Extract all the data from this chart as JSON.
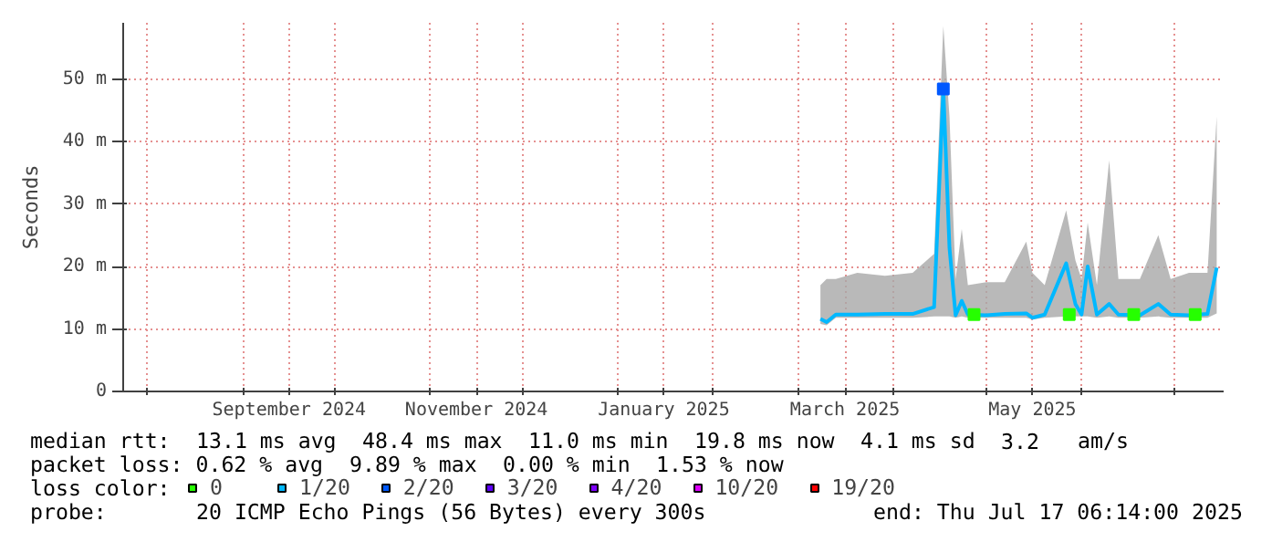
{
  "chart_data": {
    "type": "line",
    "ylabel": "Seconds",
    "xlim": [
      "2024-07-24",
      "2025-07-17T06:14"
    ],
    "xticks": [
      {
        "value": "2024-08-01",
        "label": null
      },
      {
        "value": "2024-09-01",
        "label": null
      },
      {
        "value": "2024-09-16",
        "label": "September 2024"
      },
      {
        "value": "2024-10-01",
        "label": null
      },
      {
        "value": "2024-11-01",
        "label": null
      },
      {
        "value": "2024-11-16",
        "label": "November 2024"
      },
      {
        "value": "2024-12-01",
        "label": null
      },
      {
        "value": "2025-01-01",
        "label": null
      },
      {
        "value": "2025-01-16",
        "label": "January 2025"
      },
      {
        "value": "2025-02-01",
        "label": null
      },
      {
        "value": "2025-03-01",
        "label": null
      },
      {
        "value": "2025-03-16",
        "label": "March 2025"
      },
      {
        "value": "2025-04-01",
        "label": null
      },
      {
        "value": "2025-05-01",
        "label": null
      },
      {
        "value": "2025-05-16",
        "label": "May 2025"
      },
      {
        "value": "2025-06-01",
        "label": null
      },
      {
        "value": "2025-07-01",
        "label": null
      }
    ],
    "ylim": [
      0,
      59
    ],
    "yticks": [
      0,
      {
        "value": 10,
        "label": "10 m"
      },
      {
        "value": 20,
        "label": "20 m"
      },
      {
        "value": 30,
        "label": "30 m"
      },
      {
        "value": 40,
        "label": "40 m"
      },
      {
        "value": 50,
        "label": "50 m"
      }
    ],
    "grid": true,
    "legend": "bottom",
    "legend_title": "loss color:",
    "x": [
      "2025-03-08",
      "2025-03-10",
      "2025-03-13",
      "2025-03-20",
      "2025-03-29",
      "2025-04-07",
      "2025-04-14",
      "2025-04-17",
      "2025-04-19",
      "2025-04-21",
      "2025-04-23",
      "2025-04-25",
      "2025-05-01",
      "2025-05-07",
      "2025-05-14",
      "2025-05-16",
      "2025-05-20",
      "2025-05-27",
      "2025-05-30",
      "2025-06-01",
      "2025-06-03",
      "2025-06-06",
      "2025-06-10",
      "2025-06-13",
      "2025-06-20",
      "2025-06-26",
      "2025-06-30",
      "2025-07-06",
      "2025-07-12",
      "2025-07-15"
    ],
    "series": [
      {
        "name": "0",
        "color": "#26ff00",
        "type": "scatter",
        "marker": "square",
        "x": [
          "2025-04-27",
          "2025-05-28",
          "2025-06-18",
          "2025-07-08"
        ],
        "values": [
          12.3,
          12.3,
          12.3,
          12.3
        ]
      },
      {
        "name": "1/20",
        "color": "#00b8ff",
        "values": [
          11.6,
          11.1,
          12.3,
          12.3,
          12.4,
          12.4,
          13.5,
          48.4,
          23,
          12.2,
          14.5,
          12.3,
          12.2,
          12.4,
          12.5,
          11.8,
          12.3,
          20.5,
          14,
          12.3,
          20,
          12.3,
          14,
          12.3,
          12.2,
          14,
          12.3,
          12.2,
          12.4,
          19.8
        ],
        "lower": [
          10.8,
          10.6,
          11.8,
          11.8,
          11.8,
          11.8,
          12,
          12,
          12,
          11.8,
          12,
          11.8,
          11.8,
          11.8,
          11.8,
          11.5,
          11.8,
          12,
          12,
          12,
          12,
          11.8,
          12,
          11.8,
          11.8,
          12,
          11.8,
          11.8,
          11.8,
          12.5
        ],
        "upper": [
          17,
          18,
          18,
          19,
          18.5,
          19,
          22,
          58.5,
          44,
          18,
          26,
          17,
          17.5,
          17.5,
          24,
          19,
          17,
          29,
          21,
          18,
          27,
          17,
          37,
          18,
          18,
          25,
          18,
          19,
          19,
          44
        ]
      },
      {
        "name": "2/20",
        "color": "#0059ff",
        "type": "scatter",
        "marker": "square",
        "x": [
          "2025-04-17"
        ],
        "values": [
          48.4
        ]
      },
      {
        "name": "3/20",
        "color": "#5e00ff",
        "values": [
          null,
          null,
          null,
          null,
          null,
          null,
          null,
          null,
          null,
          null,
          null,
          null,
          null,
          null,
          null,
          null,
          null,
          null,
          null,
          null,
          null,
          null,
          null,
          null,
          null,
          null,
          null,
          null,
          null,
          null
        ]
      },
      {
        "name": "4/20",
        "color": "#7e00ff",
        "values": [
          null,
          null,
          null,
          null,
          null,
          null,
          null,
          null,
          null,
          null,
          null,
          null,
          null,
          null,
          null,
          null,
          null,
          null,
          null,
          null,
          null,
          null,
          null,
          null,
          null,
          null,
          null,
          null,
          null,
          null
        ]
      },
      {
        "name": "10/20",
        "color": "#dd00ff",
        "values": [
          null,
          null,
          null,
          null,
          null,
          null,
          null,
          null,
          null,
          null,
          null,
          null,
          null,
          null,
          null,
          null,
          null,
          null,
          null,
          null,
          null,
          null,
          null,
          null,
          null,
          null,
          null,
          null,
          null,
          null
        ]
      },
      {
        "name": "19/20",
        "color": "#ff0000",
        "values": [
          null,
          null,
          null,
          null,
          null,
          null,
          null,
          null,
          null,
          null,
          null,
          null,
          null,
          null,
          null,
          null,
          null,
          null,
          null,
          null,
          null,
          null,
          null,
          null,
          null,
          null,
          null,
          null,
          null,
          null
        ]
      }
    ],
    "annotations": [
      "median rtt:  13.1 ms avg  48.4 ms max  11.0 ms min  19.8 ms now  4.1 ms sd  3.2   am/s",
      "packet loss: 0.62 % avg  9.89 % max  0.00 % min  1.53 % now",
      "probe:       20 ICMP Echo Pings (56 Bytes) every 300s             end: Thu Jul 17 06:14:00 2025"
    ]
  }
}
